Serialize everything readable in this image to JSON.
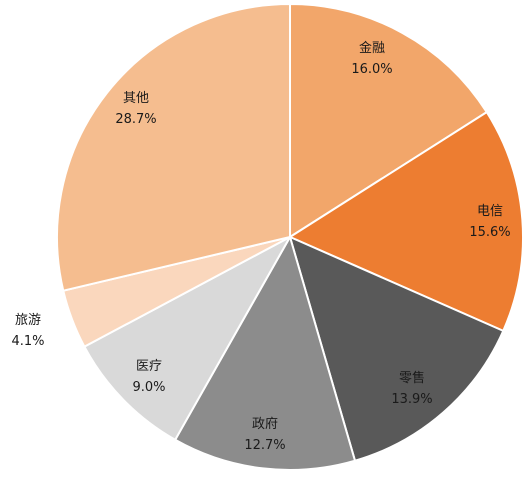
{
  "chart_data": {
    "type": "pie",
    "start_angle": "12 o'clock",
    "direction": "clockwise",
    "slices": [
      {
        "label": "金融",
        "value": 16.0,
        "value_label": "16.0%",
        "color": "#f2a66a"
      },
      {
        "label": "电信",
        "value": 15.6,
        "value_label": "15.6%",
        "color": "#ed7d31"
      },
      {
        "label": "零售",
        "value": 13.9,
        "value_label": "13.9%",
        "color": "#595959"
      },
      {
        "label": "政府",
        "value": 12.7,
        "value_label": "12.7%",
        "color": "#8c8c8c"
      },
      {
        "label": "医疗",
        "value": 9.0,
        "value_label": "9.0%",
        "color": "#d9d9d9"
      },
      {
        "label": "旅游",
        "value": 4.1,
        "value_label": "4.1%",
        "color": "#fad7bd"
      },
      {
        "label": "其他",
        "value": 28.7,
        "value_label": "28.7%",
        "color": "#f5bd8f"
      }
    ]
  }
}
